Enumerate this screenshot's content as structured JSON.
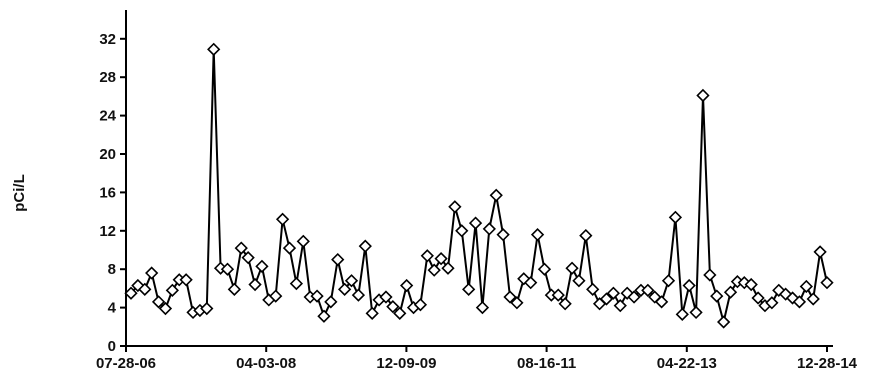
{
  "chart_data": {
    "type": "line",
    "title": "",
    "xlabel": "",
    "ylabel": "pCi/L",
    "ylim": [
      0,
      35
    ],
    "yticks": [
      "0",
      "4",
      "8",
      "12",
      "16",
      "20",
      "24",
      "28",
      "32"
    ],
    "xticks": [
      "07-28-06",
      "04-03-08",
      "12-09-09",
      "08-16-11",
      "04-22-13",
      "12-28-14"
    ],
    "grid": false,
    "marker": "diamond-open",
    "colors": {
      "line": "#000000",
      "marker_fill": "#ffffff"
    },
    "series": [
      {
        "x_range": [
          "07-28-06",
          "12-28-14"
        ],
        "values": [
          5.5,
          6.3,
          5.9,
          7.6,
          4.6,
          3.9,
          5.8,
          6.9,
          6.9,
          3.5,
          3.7,
          3.9,
          30.9,
          8.1,
          8.0,
          5.9,
          10.2,
          9.2,
          6.4,
          8.3,
          4.8,
          5.2,
          13.2,
          10.2,
          6.5,
          10.9,
          5.1,
          5.2,
          3.1,
          4.6,
          9.0,
          5.9,
          6.8,
          5.3,
          10.4,
          3.4,
          4.8,
          5.1,
          4.1,
          3.4,
          6.3,
          4.0,
          4.3,
          9.4,
          7.9,
          9.1,
          8.1,
          14.5,
          12.0,
          5.9,
          12.8,
          4.0,
          12.2,
          15.7,
          11.6,
          5.1,
          4.5,
          7.0,
          6.6,
          11.6,
          8.0,
          5.3,
          5.3,
          4.4,
          8.1,
          6.8,
          11.5,
          5.9,
          4.4,
          4.9,
          5.5,
          4.2,
          5.5,
          5.1,
          5.8,
          5.8,
          5.1,
          4.6,
          6.8,
          13.4,
          3.3,
          6.3,
          3.5,
          26.1,
          7.4,
          5.2,
          2.5,
          5.6,
          6.7,
          6.6,
          6.4,
          5.0,
          4.2,
          4.5,
          5.8,
          5.4,
          5.0,
          4.6,
          6.2,
          4.9,
          9.8,
          6.6
        ]
      }
    ]
  }
}
